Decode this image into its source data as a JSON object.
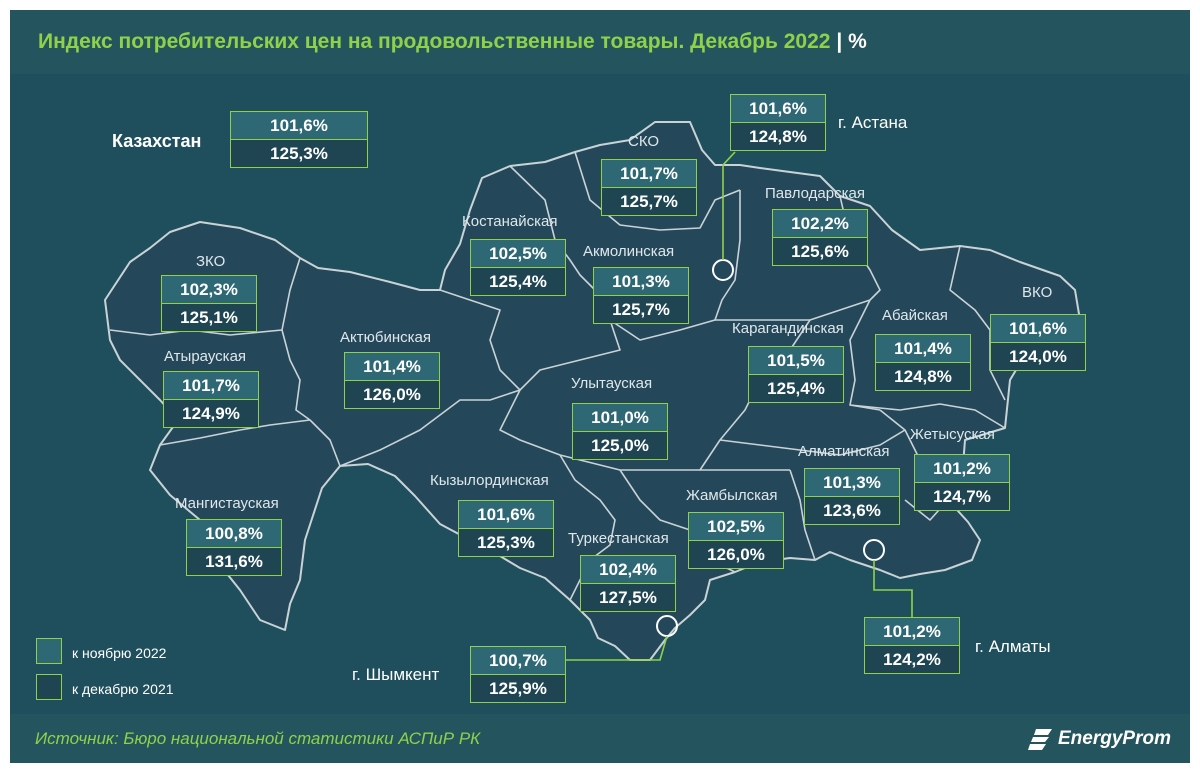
{
  "title": "Индекс потребительских цен на продовольственные товары. Декабрь 2022",
  "title_separator": "|",
  "title_unit": "%",
  "source": "Источник: Бюро национальной статистики АСПиР РК",
  "brand": "EnergyProm",
  "colors": {
    "accent": "#8fd24a",
    "background": "#1f4f5c",
    "region_fill": "#24485a",
    "box_nov": "#2f6875",
    "box_dec": "#1f4552"
  },
  "legend": {
    "nov": "к ноябрю 2022",
    "dec": "к декабрю 2021"
  },
  "country": {
    "name": "Казахстан",
    "nov": "101,6%",
    "dec": "125,3%"
  },
  "regions": [
    {
      "name": "СКО",
      "nov": "101,7%",
      "dec": "125,7%"
    },
    {
      "name": "Павлодарская",
      "nov": "102,2%",
      "dec": "125,6%"
    },
    {
      "name": "Костанайская",
      "nov": "102,5%",
      "dec": "125,4%"
    },
    {
      "name": "Акмолинская",
      "nov": "101,3%",
      "dec": "125,7%"
    },
    {
      "name": "ЗКО",
      "nov": "102,3%",
      "dec": "125,1%"
    },
    {
      "name": "Атырауская",
      "nov": "101,7%",
      "dec": "124,9%"
    },
    {
      "name": "Актюбинская",
      "nov": "101,4%",
      "dec": "126,0%"
    },
    {
      "name": "Карагандинская",
      "nov": "101,5%",
      "dec": "125,4%"
    },
    {
      "name": "Абайская",
      "nov": "101,4%",
      "dec": "124,8%"
    },
    {
      "name": "ВКО",
      "nov": "101,6%",
      "dec": "124,0%"
    },
    {
      "name": "Улытауская",
      "nov": "101,0%",
      "dec": "125,0%"
    },
    {
      "name": "Жетысуская",
      "nov": "101,2%",
      "dec": "124,7%"
    },
    {
      "name": "Алматинская",
      "nov": "101,3%",
      "dec": "123,6%"
    },
    {
      "name": "Кызылординская",
      "nov": "101,6%",
      "dec": "125,3%"
    },
    {
      "name": "Жамбылская",
      "nov": "102,5%",
      "dec": "126,0%"
    },
    {
      "name": "Мангистауская",
      "nov": "100,8%",
      "dec": "131,6%"
    },
    {
      "name": "Туркестанская",
      "nov": "102,4%",
      "dec": "127,5%"
    }
  ],
  "cities": [
    {
      "name": "г. Астана",
      "nov": "101,6%",
      "dec": "124,8%"
    },
    {
      "name": "г. Алматы",
      "nov": "101,2%",
      "dec": "124,2%"
    },
    {
      "name": "г. Шымкент",
      "nov": "100,7%",
      "dec": "125,9%"
    }
  ]
}
